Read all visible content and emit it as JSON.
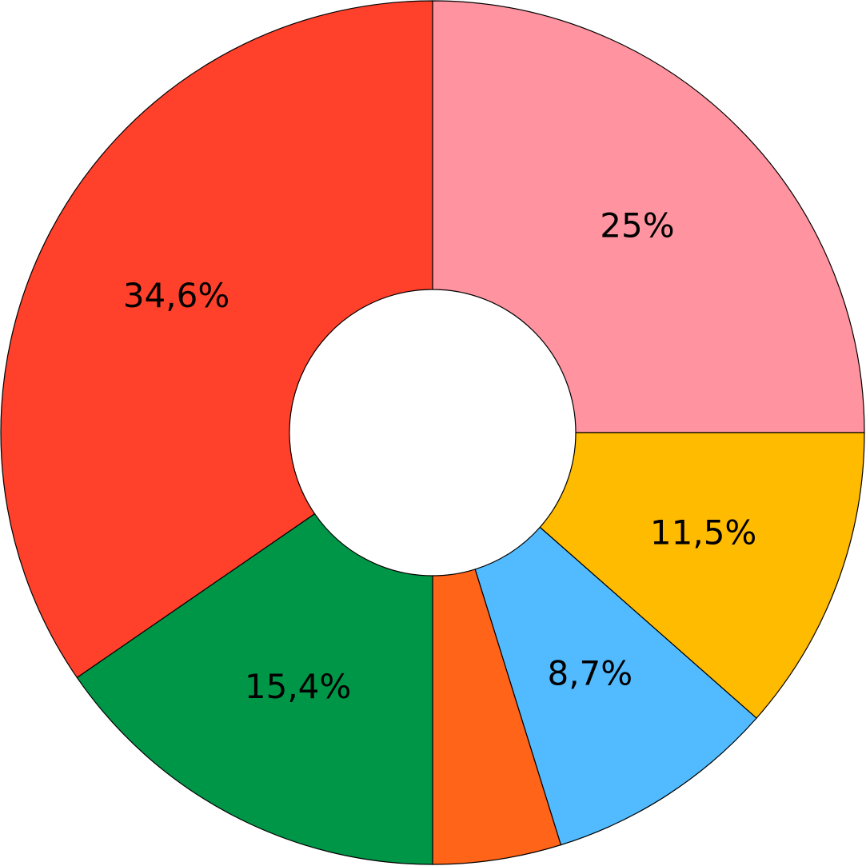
{
  "chart_data": {
    "type": "pie",
    "values": [
      25,
      11.5,
      8.7,
      4.8,
      15.4,
      34.6
    ],
    "value_labels": [
      "25%",
      "11,5%",
      "8,7%",
      null,
      "15,4%",
      "34,6%"
    ],
    "colors": [
      "#ff94a0",
      "#ffbb00",
      "#52bbff",
      "#ff6418",
      "#009647",
      "#ff402b"
    ]
  }
}
